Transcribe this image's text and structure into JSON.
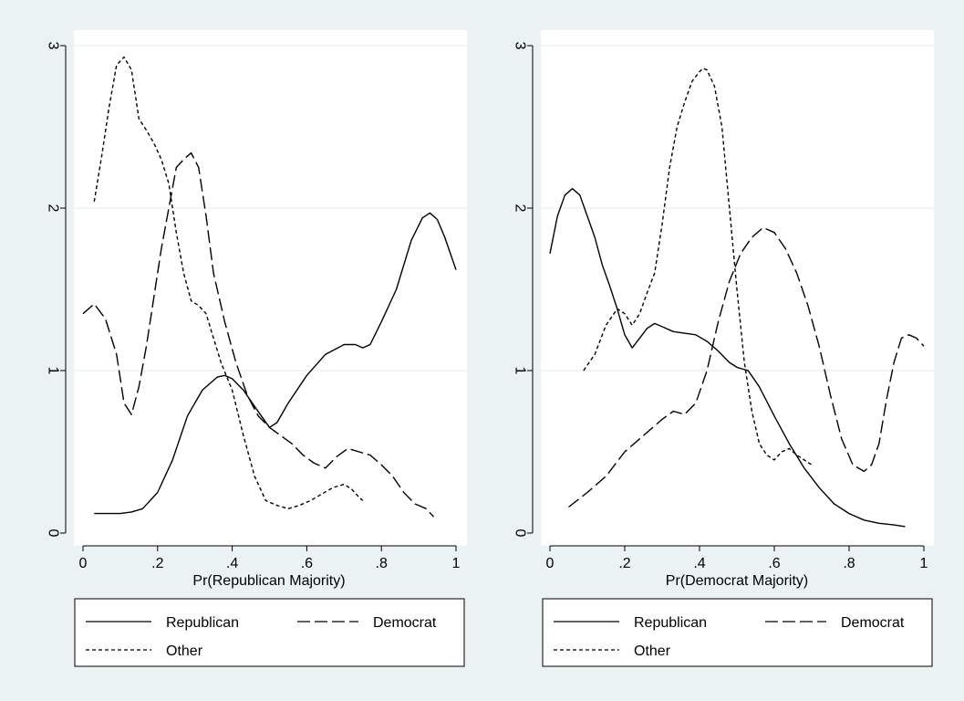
{
  "colors": {
    "outer_background": "#eaf2f3",
    "plot_background": "#ffffff",
    "gridline": "#e8f0f0",
    "line": "#000000"
  },
  "chart_data": [
    {
      "type": "line",
      "title": "",
      "xlabel": "Pr(Republican Majority)",
      "ylabel": "",
      "xlim": [
        0,
        1
      ],
      "ylim": [
        0,
        3
      ],
      "xticks": [
        0,
        0.2,
        0.4,
        0.6,
        0.8,
        1
      ],
      "xtick_labels": [
        "0",
        ".2",
        ".4",
        ".6",
        ".8",
        "1"
      ],
      "yticks": [
        0,
        1,
        2,
        3
      ],
      "ytick_labels": [
        "0",
        "1",
        "2",
        "3"
      ],
      "grid": "horizontal",
      "legend_position": "bottom",
      "series": [
        {
          "name": "Republican",
          "style": "solid",
          "x": [
            0.03,
            0.07,
            0.1,
            0.13,
            0.16,
            0.2,
            0.24,
            0.28,
            0.32,
            0.36,
            0.38,
            0.4,
            0.43,
            0.46,
            0.5,
            0.52,
            0.55,
            0.6,
            0.65,
            0.7,
            0.73,
            0.75,
            0.77,
            0.8,
            0.84,
            0.88,
            0.91,
            0.93,
            0.95,
            0.97,
            1.0
          ],
          "y": [
            0.12,
            0.12,
            0.12,
            0.13,
            0.15,
            0.25,
            0.45,
            0.72,
            0.88,
            0.96,
            0.97,
            0.95,
            0.88,
            0.78,
            0.65,
            0.68,
            0.8,
            0.97,
            1.1,
            1.16,
            1.16,
            1.14,
            1.16,
            1.3,
            1.5,
            1.8,
            1.94,
            1.97,
            1.93,
            1.82,
            1.62
          ]
        },
        {
          "name": "Democrat",
          "style": "long-dash",
          "x": [
            0.0,
            0.03,
            0.06,
            0.09,
            0.11,
            0.13,
            0.15,
            0.17,
            0.19,
            0.21,
            0.23,
            0.25,
            0.27,
            0.29,
            0.31,
            0.33,
            0.35,
            0.38,
            0.41,
            0.44,
            0.47,
            0.5,
            0.53,
            0.56,
            0.59,
            0.62,
            0.65,
            0.68,
            0.71,
            0.74,
            0.77,
            0.8,
            0.83,
            0.86,
            0.89,
            0.92,
            0.94
          ],
          "y": [
            1.35,
            1.41,
            1.32,
            1.1,
            0.8,
            0.73,
            0.9,
            1.15,
            1.45,
            1.75,
            2.0,
            2.25,
            2.3,
            2.34,
            2.25,
            1.95,
            1.6,
            1.3,
            1.05,
            0.85,
            0.72,
            0.65,
            0.6,
            0.55,
            0.48,
            0.43,
            0.4,
            0.47,
            0.52,
            0.5,
            0.48,
            0.42,
            0.35,
            0.25,
            0.18,
            0.15,
            0.1
          ]
        },
        {
          "name": "Other",
          "style": "short-dash",
          "x": [
            0.03,
            0.05,
            0.07,
            0.09,
            0.11,
            0.13,
            0.15,
            0.17,
            0.19,
            0.21,
            0.23,
            0.25,
            0.27,
            0.29,
            0.31,
            0.33,
            0.35,
            0.37,
            0.4,
            0.43,
            0.46,
            0.49,
            0.52,
            0.55,
            0.58,
            0.61,
            0.64,
            0.67,
            0.7,
            0.72,
            0.74,
            0.75
          ],
          "y": [
            2.04,
            2.32,
            2.62,
            2.88,
            2.93,
            2.85,
            2.55,
            2.48,
            2.4,
            2.3,
            2.15,
            1.85,
            1.6,
            1.43,
            1.4,
            1.35,
            1.2,
            1.05,
            0.88,
            0.6,
            0.35,
            0.2,
            0.17,
            0.15,
            0.17,
            0.2,
            0.24,
            0.28,
            0.3,
            0.27,
            0.22,
            0.2
          ]
        }
      ]
    },
    {
      "type": "line",
      "title": "",
      "xlabel": "Pr(Democrat Majority)",
      "ylabel": "",
      "xlim": [
        0,
        1
      ],
      "ylim": [
        0,
        3
      ],
      "xticks": [
        0,
        0.2,
        0.4,
        0.6,
        0.8,
        1
      ],
      "xtick_labels": [
        "0",
        ".2",
        ".4",
        ".6",
        ".8",
        "1"
      ],
      "yticks": [
        0,
        1,
        2,
        3
      ],
      "ytick_labels": [
        "0",
        "1",
        "2",
        "3"
      ],
      "grid": "horizontal",
      "legend_position": "bottom",
      "series": [
        {
          "name": "Republican",
          "style": "solid",
          "x": [
            0.0,
            0.02,
            0.04,
            0.06,
            0.08,
            0.1,
            0.12,
            0.14,
            0.16,
            0.18,
            0.2,
            0.22,
            0.24,
            0.26,
            0.28,
            0.3,
            0.33,
            0.36,
            0.39,
            0.42,
            0.45,
            0.48,
            0.5,
            0.53,
            0.56,
            0.6,
            0.64,
            0.68,
            0.72,
            0.76,
            0.8,
            0.84,
            0.88,
            0.92,
            0.95
          ],
          "y": [
            1.72,
            1.95,
            2.08,
            2.12,
            2.08,
            1.95,
            1.82,
            1.65,
            1.52,
            1.38,
            1.22,
            1.14,
            1.2,
            1.26,
            1.29,
            1.27,
            1.24,
            1.23,
            1.22,
            1.18,
            1.12,
            1.05,
            1.02,
            1.0,
            0.9,
            0.72,
            0.55,
            0.4,
            0.28,
            0.18,
            0.12,
            0.08,
            0.06,
            0.05,
            0.04
          ]
        },
        {
          "name": "Democrat",
          "style": "long-dash",
          "x": [
            0.05,
            0.1,
            0.15,
            0.2,
            0.25,
            0.3,
            0.33,
            0.36,
            0.39,
            0.42,
            0.45,
            0.48,
            0.51,
            0.54,
            0.57,
            0.6,
            0.63,
            0.66,
            0.69,
            0.72,
            0.75,
            0.78,
            0.81,
            0.84,
            0.86,
            0.88,
            0.9,
            0.92,
            0.94,
            0.96,
            0.98,
            1.0
          ],
          "y": [
            0.16,
            0.25,
            0.35,
            0.5,
            0.6,
            0.7,
            0.75,
            0.73,
            0.8,
            1.0,
            1.3,
            1.55,
            1.72,
            1.82,
            1.88,
            1.85,
            1.75,
            1.6,
            1.4,
            1.15,
            0.85,
            0.58,
            0.42,
            0.38,
            0.42,
            0.55,
            0.82,
            1.05,
            1.2,
            1.22,
            1.2,
            1.15
          ]
        },
        {
          "name": "Other",
          "style": "short-dash",
          "x": [
            0.09,
            0.12,
            0.15,
            0.18,
            0.2,
            0.22,
            0.24,
            0.26,
            0.28,
            0.3,
            0.32,
            0.34,
            0.36,
            0.38,
            0.4,
            0.41,
            0.42,
            0.44,
            0.46,
            0.48,
            0.5,
            0.52,
            0.54,
            0.56,
            0.58,
            0.6,
            0.62,
            0.64,
            0.66,
            0.68,
            0.7
          ],
          "y": [
            1.0,
            1.1,
            1.28,
            1.38,
            1.35,
            1.28,
            1.35,
            1.48,
            1.6,
            1.9,
            2.25,
            2.5,
            2.65,
            2.78,
            2.84,
            2.86,
            2.85,
            2.75,
            2.5,
            2.0,
            1.5,
            1.05,
            0.75,
            0.55,
            0.48,
            0.45,
            0.5,
            0.52,
            0.48,
            0.45,
            0.42
          ]
        }
      ]
    }
  ]
}
